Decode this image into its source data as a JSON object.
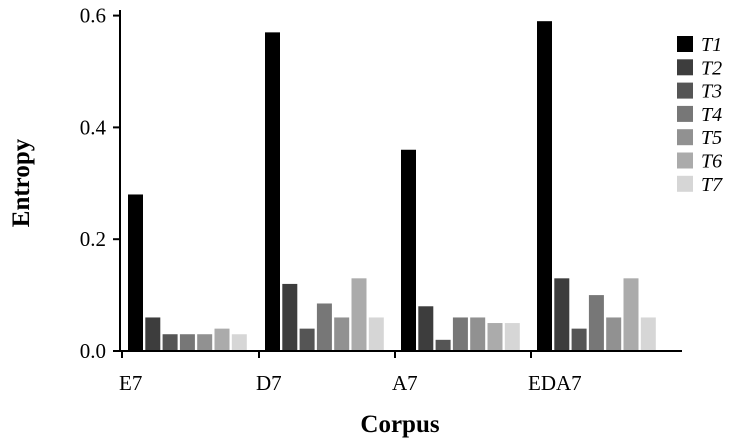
{
  "chart_data": {
    "type": "bar",
    "title": "",
    "xlabel": "Corpus",
    "ylabel": "Entropy",
    "categories": [
      "E7",
      "D7",
      "A7",
      "EDA7"
    ],
    "ylim": [
      0,
      0.61
    ],
    "yticks": [
      0.0,
      0.2,
      0.4,
      0.6
    ],
    "ytick_labels": [
      "0.0",
      "0.2",
      "0.4",
      "0.6"
    ],
    "grid": false,
    "legend_position": "right",
    "series": [
      {
        "name": "T1",
        "color": "#000000",
        "values": [
          0.28,
          0.57,
          0.36,
          0.59
        ]
      },
      {
        "name": "T2",
        "color": "#3d3d3d",
        "values": [
          0.06,
          0.12,
          0.08,
          0.13
        ]
      },
      {
        "name": "T3",
        "color": "#555555",
        "values": [
          0.03,
          0.04,
          0.02,
          0.04
        ]
      },
      {
        "name": "T4",
        "color": "#777777",
        "values": [
          0.03,
          0.085,
          0.06,
          0.1
        ]
      },
      {
        "name": "T5",
        "color": "#919191",
        "values": [
          0.03,
          0.06,
          0.06,
          0.06
        ]
      },
      {
        "name": "T6",
        "color": "#ababab",
        "values": [
          0.04,
          0.13,
          0.05,
          0.13
        ]
      },
      {
        "name": "T7",
        "color": "#d6d6d6",
        "values": [
          0.03,
          0.06,
          0.05,
          0.06
        ]
      }
    ]
  }
}
